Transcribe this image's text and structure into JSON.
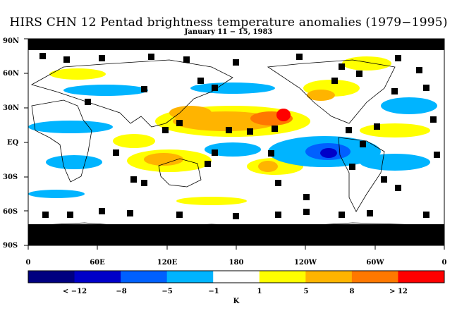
{
  "title": "HIRS CHN 12 Pentad brightness temperature anomalies (1979−1995)",
  "subtitle": "January 11 − 15, 1983",
  "lat_labels": [
    "90N",
    "60N",
    "30N",
    "EQ",
    "30S",
    "60S",
    "90S"
  ],
  "lon_labels": [
    "0",
    "60E",
    "120E",
    "180",
    "120W",
    "60W",
    "0"
  ],
  "colorbar": {
    "unit_label": "K",
    "tick_labels": [
      "< −12",
      "−8",
      "−5",
      "−1",
      "1",
      "5",
      "8",
      "> 12"
    ],
    "bins": [
      {
        "range": "< -12",
        "color": "#000080"
      },
      {
        "range": "-12 to -8",
        "color": "#0000c8"
      },
      {
        "range": "-8 to -5",
        "color": "#0060ff"
      },
      {
        "range": "-5 to -1",
        "color": "#00b4ff"
      },
      {
        "range": "-1 to 1",
        "color": "#ffffff"
      },
      {
        "range": "1 to 5",
        "color": "#ffff00"
      },
      {
        "range": "5 to 8",
        "color": "#ffb400"
      },
      {
        "range": "8 to 12",
        "color": "#ff7800"
      },
      {
        "range": "> 12",
        "color": "#ff0000"
      }
    ]
  },
  "colors": {
    "missing": "#000000",
    "coastline": "#000000",
    "background": "#ffffff"
  }
}
